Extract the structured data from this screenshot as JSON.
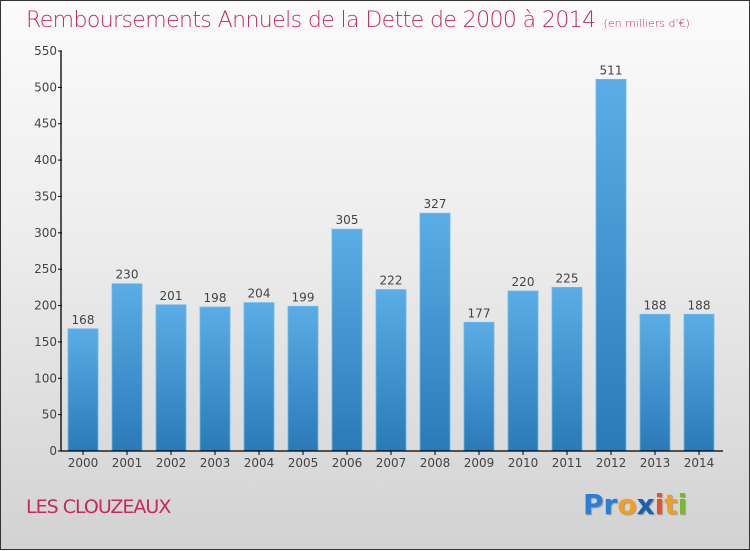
{
  "title": "Remboursements Annuels de la Dette de 2000 à 2014",
  "unit_note": "(en milliers d'€)",
  "city": "LES CLOUZEAUX",
  "logo": {
    "letters": [
      {
        "char": "P",
        "color": "#2a7fd4"
      },
      {
        "char": "r",
        "color": "#2a7fd4"
      },
      {
        "char": "o",
        "color": "#f0a020"
      },
      {
        "char": "x",
        "color": "#1a5fb0"
      },
      {
        "char": "i",
        "color": "#e8502a"
      },
      {
        "char": "t",
        "color": "#f0a020"
      },
      {
        "char": "i",
        "color": "#7ab82a"
      }
    ]
  },
  "colors": {
    "title": "#c8285a",
    "bar_top": "#5aade6",
    "bar_bottom": "#2a7ab8"
  },
  "chart_data": {
    "type": "bar",
    "title": "Remboursements Annuels de la Dette de 2000 à 2014",
    "subtitle": "(en milliers d'€)",
    "xlabel": "",
    "ylabel": "",
    "categories": [
      "2000",
      "2001",
      "2002",
      "2003",
      "2004",
      "2005",
      "2006",
      "2007",
      "2008",
      "2009",
      "2010",
      "2011",
      "2012",
      "2013",
      "2014"
    ],
    "values": [
      168,
      230,
      201,
      198,
      204,
      199,
      305,
      222,
      327,
      177,
      220,
      225,
      511,
      188,
      188
    ],
    "ylim": [
      0,
      550
    ],
    "yticks": [
      0,
      50,
      100,
      150,
      200,
      250,
      300,
      350,
      400,
      450,
      500,
      550
    ],
    "grid": false,
    "legend": "none",
    "data_labels": true
  }
}
